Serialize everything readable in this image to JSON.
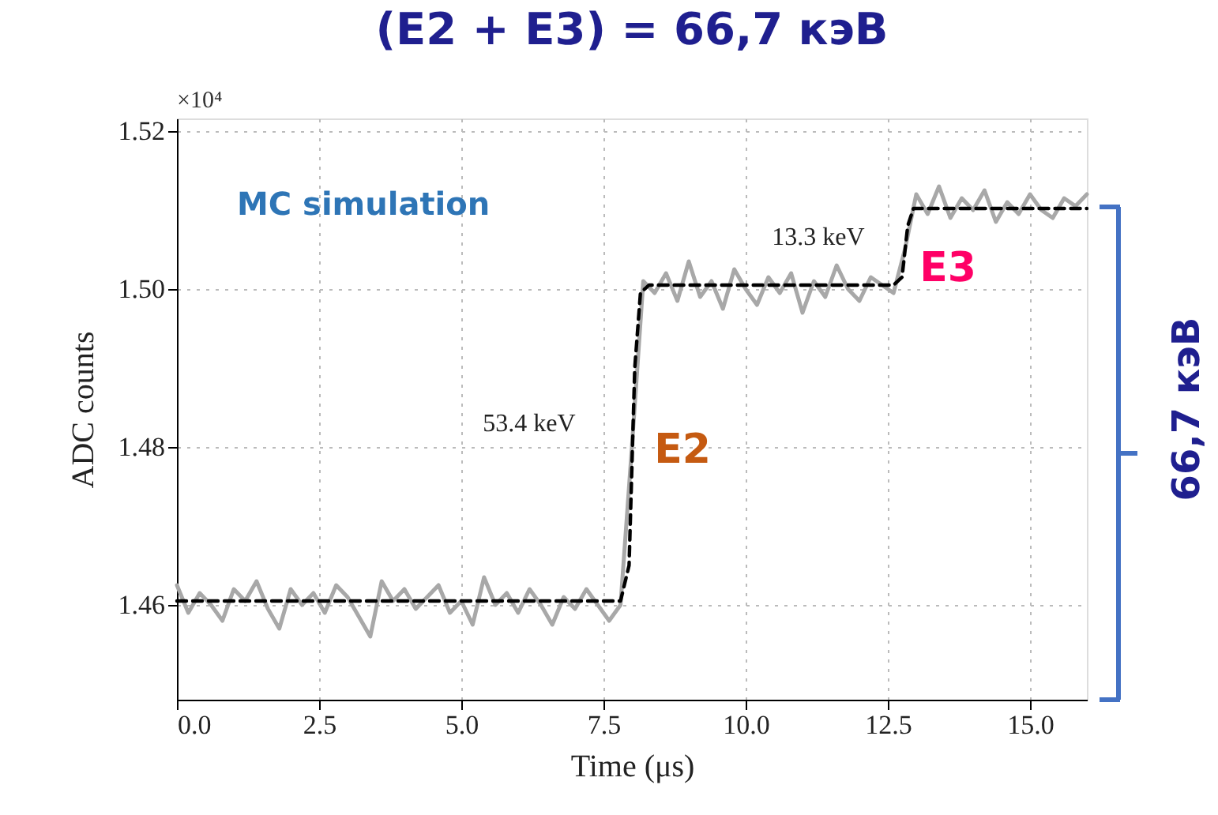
{
  "chart_data": {
    "type": "line",
    "title": "(E2 + E3) = 66,7 кэВ",
    "xlabel": "Time (μs)",
    "ylabel": "ADC counts",
    "xlim": [
      0,
      16
    ],
    "ylim": [
      1.448,
      1.5216
    ],
    "xticks": [
      {
        "value": 0,
        "label": "0.0"
      },
      {
        "value": 2.5,
        "label": "2.5"
      },
      {
        "value": 5,
        "label": "5.0"
      },
      {
        "value": 7.5,
        "label": "7.5"
      },
      {
        "value": 10,
        "label": "10.0"
      },
      {
        "value": 12.5,
        "label": "12.5"
      },
      {
        "value": 15,
        "label": "15.0"
      }
    ],
    "yticks": [
      1.46,
      1.48,
      {
        "value": 1.5,
        "label": "1.50"
      },
      1.52
    ],
    "grid": true,
    "series": [
      {
        "color": "#a8a8a8",
        "line_style": "solid",
        "x": [
          0,
          0.2,
          0.4,
          0.6,
          0.8,
          1,
          1.2,
          1.4,
          1.6,
          1.8,
          2,
          2.2,
          2.4,
          2.6,
          2.8,
          3,
          3.2,
          3.4,
          3.6,
          3.8,
          4,
          4.2,
          4.4,
          4.6,
          4.8,
          5,
          5.2,
          5.4,
          5.6,
          5.8,
          6,
          6.2,
          6.4,
          6.6,
          6.8,
          7,
          7.2,
          7.4,
          7.6,
          7.8,
          8,
          8.2,
          8.4,
          8.6,
          8.8,
          9,
          9.2,
          9.4,
          9.6,
          9.8,
          10,
          10.2,
          10.4,
          10.6,
          10.8,
          11,
          11.2,
          11.4,
          11.6,
          11.8,
          12,
          12.2,
          12.4,
          12.6,
          12.8,
          13,
          13.2,
          13.4,
          13.6,
          13.8,
          14,
          14.2,
          14.4,
          14.6,
          14.8,
          15,
          15.2,
          15.4,
          15.6,
          15.8,
          16
        ],
        "values": [
          1.4625,
          1.459,
          1.4615,
          1.46,
          1.458,
          1.462,
          1.4605,
          1.463,
          1.4595,
          1.457,
          1.462,
          1.46,
          1.4615,
          1.459,
          1.4625,
          1.461,
          1.4585,
          1.456,
          1.463,
          1.4605,
          1.462,
          1.4595,
          1.461,
          1.4625,
          1.459,
          1.4605,
          1.4575,
          1.4635,
          1.46,
          1.4615,
          1.459,
          1.462,
          1.46,
          1.4575,
          1.461,
          1.4595,
          1.462,
          1.46,
          1.458,
          1.46,
          1.48,
          1.501,
          1.4995,
          1.502,
          1.4985,
          1.5035,
          1.499,
          1.501,
          1.4975,
          1.5025,
          1.5,
          1.498,
          1.5015,
          1.4995,
          1.502,
          1.497,
          1.501,
          1.499,
          1.503,
          1.5,
          1.4985,
          1.5015,
          1.5005,
          1.4995,
          1.505,
          1.512,
          1.5095,
          1.513,
          1.509,
          1.5115,
          1.51,
          1.5125,
          1.5085,
          1.511,
          1.5095,
          1.512,
          1.51,
          1.509,
          1.5115,
          1.5105,
          1.512
        ]
      },
      {
        "color": "#000000",
        "line_style": "dashed",
        "x": [
          0,
          7.8,
          7.95,
          8.05,
          8.15,
          8.3,
          12.6,
          12.75,
          12.85,
          12.95,
          16
        ],
        "values": [
          1.4605,
          1.4605,
          1.465,
          1.49,
          1.4995,
          1.5005,
          1.5005,
          1.5015,
          1.508,
          1.5102,
          1.5102
        ]
      }
    ],
    "annotations": [
      "MC simulation",
      "53.4 keV",
      "13.3 keV",
      "E2",
      "E3",
      "66,7 кэВ",
      "×10⁴"
    ]
  }
}
